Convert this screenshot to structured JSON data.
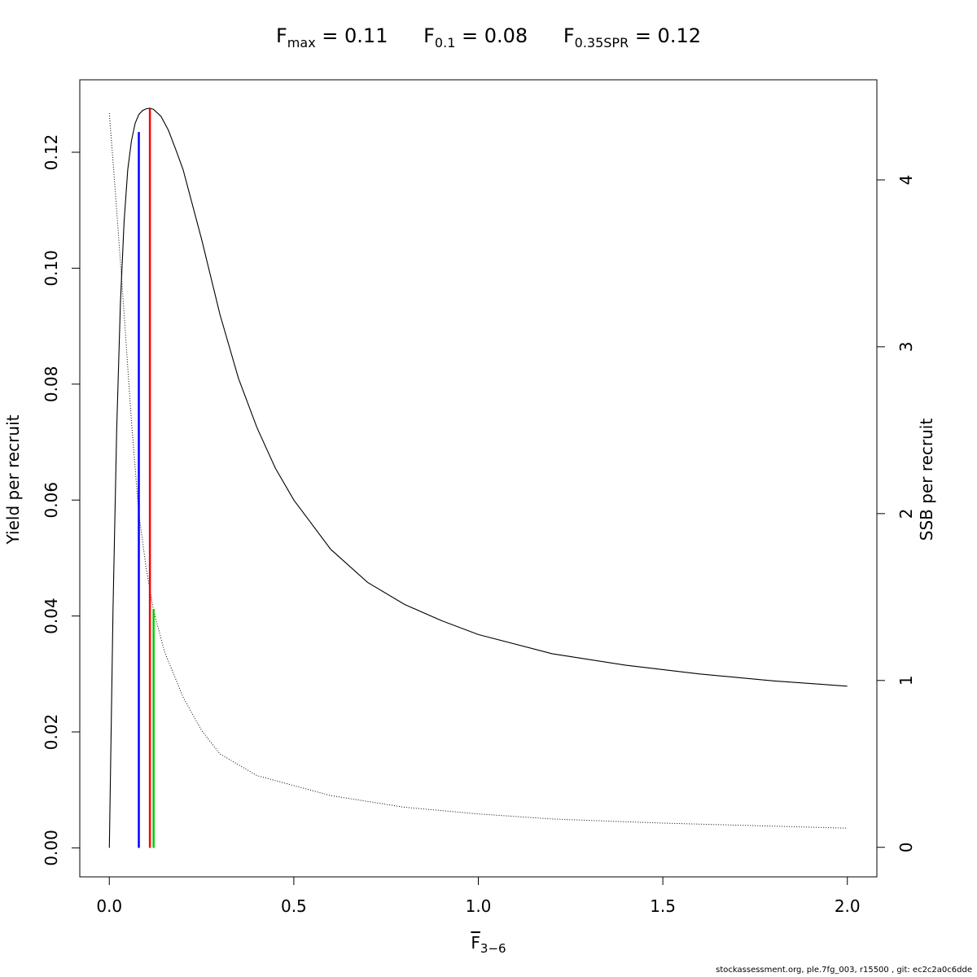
{
  "title": {
    "fmax": {
      "base": "F",
      "sub": "max",
      "rest": " = 0.11"
    },
    "f01": {
      "base": "F",
      "sub": "0.1",
      "rest": " = 0.08"
    },
    "f035spr": {
      "base": "F",
      "sub": "0.35SPR",
      "rest": " = 0.12"
    }
  },
  "xlabel": {
    "base": "F",
    "sub": "3−6"
  },
  "ylabel_left": "Yield per recruit",
  "ylabel_right": "SSB per recruit",
  "footer": "stockassessment.org, ple.7fg_003, r15500 , git: ec2c2a0c6dde",
  "colors": {
    "fmax": "#ff0000",
    "f01": "#0000ff",
    "f035spr": "#00cc00",
    "curve": "#000000"
  },
  "chart_data": {
    "type": "line",
    "xlim": [
      -0.08,
      2.08
    ],
    "ylim_left": [
      -0.005,
      0.1325
    ],
    "ylim_right": [
      -0.177,
      4.6
    ],
    "x_ticks": [
      "0.0",
      "0.5",
      "1.0",
      "1.5",
      "2.0"
    ],
    "x_tick_values": [
      0,
      0.5,
      1.0,
      1.5,
      2.0
    ],
    "y_left_ticks": [
      "0.00",
      "0.02",
      "0.04",
      "0.06",
      "0.08",
      "0.10",
      "0.12"
    ],
    "y_left_tick_values": [
      0,
      0.02,
      0.04,
      0.06,
      0.08,
      0.1,
      0.12
    ],
    "y_right_ticks": [
      "0",
      "1",
      "2",
      "3",
      "4"
    ],
    "y_right_tick_values": [
      0,
      1,
      2,
      3,
      4
    ],
    "grid": false,
    "series": [
      {
        "axis": "left",
        "style": "solid",
        "x": [
          0,
          0.01,
          0.02,
          0.03,
          0.04,
          0.05,
          0.06,
          0.07,
          0.08,
          0.09,
          0.1,
          0.11,
          0.12,
          0.14,
          0.16,
          0.18,
          0.2,
          0.25,
          0.3,
          0.35,
          0.4,
          0.45,
          0.5,
          0.6,
          0.7,
          0.8,
          0.9,
          1.0,
          1.2,
          1.4,
          1.6,
          1.8,
          2.0
        ],
        "y": [
          0,
          0.041,
          0.072,
          0.094,
          0.108,
          0.117,
          0.122,
          0.125,
          0.1265,
          0.1272,
          0.1275,
          0.1276,
          0.1274,
          0.1262,
          0.1238,
          0.1205,
          0.117,
          0.105,
          0.092,
          0.081,
          0.0725,
          0.0655,
          0.06,
          0.0515,
          0.0458,
          0.042,
          0.0392,
          0.0368,
          0.0335,
          0.0315,
          0.03,
          0.0288,
          0.0279
        ]
      },
      {
        "axis": "right",
        "style": "dotted",
        "x": [
          0,
          0.02,
          0.04,
          0.06,
          0.08,
          0.1,
          0.12,
          0.15,
          0.2,
          0.25,
          0.3,
          0.4,
          0.5,
          0.6,
          0.8,
          1.0,
          1.2,
          1.5,
          2.0
        ],
        "y": [
          4.4,
          3.82,
          3.2,
          2.55,
          2.0,
          1.67,
          1.42,
          1.17,
          0.9,
          0.7,
          0.56,
          0.43,
          0.37,
          0.31,
          0.24,
          0.2,
          0.17,
          0.145,
          0.115
        ]
      }
    ],
    "reference_lines": [
      {
        "label": "Fmax",
        "x": 0.11,
        "y_top": 0.1275,
        "color": "#ff0000"
      },
      {
        "label": "F0.1",
        "x": 0.08,
        "y_top": 0.1235,
        "color": "#0000ff"
      },
      {
        "label": "F0.35SPR",
        "x": 0.12,
        "y_top": 0.0412,
        "color": "#00cc00"
      }
    ]
  }
}
